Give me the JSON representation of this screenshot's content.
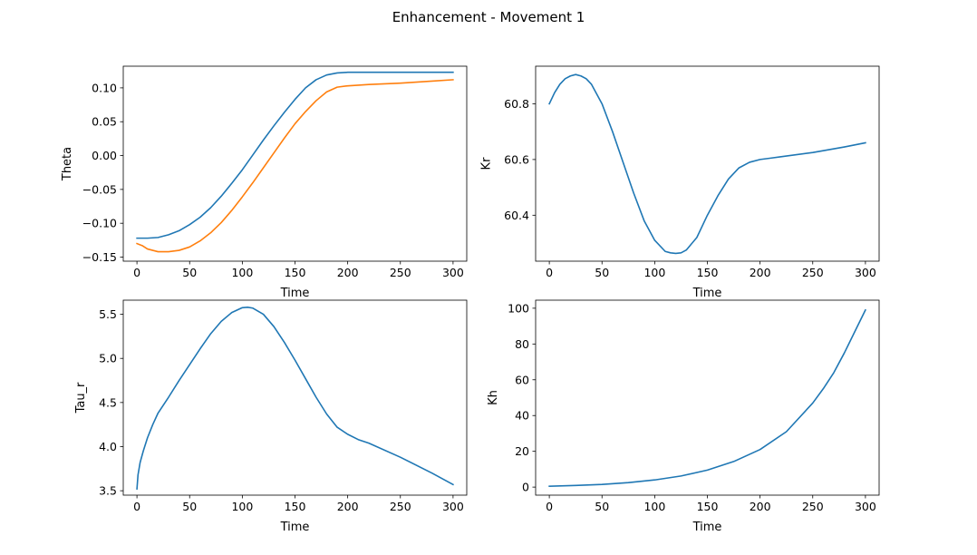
{
  "figure": {
    "title": "Enhancement - Movement 1"
  },
  "chart_data": [
    {
      "type": "line",
      "xlabel": "Time",
      "ylabel": "Theta",
      "xlim": [
        -13,
        313
      ],
      "ylim": [
        -0.156,
        0.132
      ],
      "xticks": [
        0,
        50,
        100,
        150,
        200,
        250,
        300
      ],
      "yticks": [
        -0.15,
        -0.1,
        -0.05,
        0.0,
        0.05,
        0.1
      ],
      "ytick_labels": [
        "−0.15",
        "−0.10",
        "−0.05",
        "0.00",
        "0.05",
        "0.10"
      ],
      "grid": false,
      "series": [
        {
          "color": "#1f77b4",
          "x": [
            0,
            10,
            20,
            30,
            40,
            50,
            60,
            70,
            80,
            90,
            100,
            110,
            120,
            130,
            140,
            150,
            160,
            170,
            180,
            190,
            200,
            220,
            250,
            280,
            300
          ],
          "y": [
            -0.122,
            -0.122,
            -0.121,
            -0.117,
            -0.111,
            -0.102,
            -0.091,
            -0.077,
            -0.06,
            -0.041,
            -0.021,
            0.001,
            0.023,
            0.044,
            0.064,
            0.083,
            0.1,
            0.112,
            0.119,
            0.122,
            0.123,
            0.123,
            0.123,
            0.123,
            0.123
          ]
        },
        {
          "color": "#ff7f0e",
          "x": [
            0,
            5,
            10,
            20,
            30,
            40,
            50,
            60,
            70,
            80,
            90,
            100,
            110,
            120,
            130,
            140,
            150,
            160,
            170,
            180,
            190,
            200,
            220,
            250,
            280,
            300
          ],
          "y": [
            -0.13,
            -0.133,
            -0.138,
            -0.142,
            -0.142,
            -0.14,
            -0.135,
            -0.126,
            -0.114,
            -0.099,
            -0.081,
            -0.061,
            -0.04,
            -0.018,
            0.004,
            0.026,
            0.047,
            0.065,
            0.081,
            0.094,
            0.101,
            0.103,
            0.105,
            0.107,
            0.11,
            0.112
          ]
        }
      ]
    },
    {
      "type": "line",
      "xlabel": "Time",
      "ylabel": "Kr",
      "xlim": [
        -13,
        313
      ],
      "ylim": [
        60.235,
        60.935
      ],
      "xticks": [
        0,
        50,
        100,
        150,
        200,
        250,
        300
      ],
      "yticks": [
        60.4,
        60.6,
        60.8
      ],
      "ytick_labels": [
        "60.4",
        "60.6",
        "60.8"
      ],
      "grid": false,
      "series": [
        {
          "color": "#1f77b4",
          "x": [
            0,
            5,
            10,
            15,
            20,
            25,
            30,
            35,
            40,
            50,
            60,
            70,
            80,
            90,
            100,
            110,
            115,
            120,
            125,
            130,
            140,
            150,
            160,
            170,
            180,
            190,
            200,
            210,
            220,
            250,
            280,
            300
          ],
          "y": [
            60.8,
            60.84,
            60.87,
            60.89,
            60.9,
            60.905,
            60.9,
            60.89,
            60.87,
            60.8,
            60.7,
            60.59,
            60.48,
            60.38,
            60.31,
            60.27,
            60.265,
            60.263,
            60.265,
            60.275,
            60.32,
            60.4,
            60.47,
            60.53,
            60.57,
            60.59,
            60.6,
            60.605,
            60.61,
            60.625,
            60.645,
            60.66
          ]
        }
      ]
    },
    {
      "type": "line",
      "xlabel": "Time",
      "ylabel": "Tau_r",
      "xlim": [
        -13,
        313
      ],
      "ylim": [
        3.45,
        5.66
      ],
      "xticks": [
        0,
        50,
        100,
        150,
        200,
        250,
        300
      ],
      "yticks": [
        3.5,
        4.0,
        4.5,
        5.0,
        5.5
      ],
      "ytick_labels": [
        "3.5",
        "4.0",
        "4.5",
        "5.0",
        "5.5"
      ],
      "grid": false,
      "series": [
        {
          "color": "#1f77b4",
          "x": [
            0,
            1,
            3,
            6,
            10,
            15,
            20,
            30,
            40,
            50,
            60,
            70,
            80,
            90,
            100,
            105,
            110,
            120,
            130,
            140,
            150,
            160,
            170,
            180,
            190,
            200,
            210,
            220,
            250,
            280,
            300
          ],
          "y": [
            3.52,
            3.68,
            3.82,
            3.95,
            4.1,
            4.25,
            4.38,
            4.56,
            4.75,
            4.93,
            5.11,
            5.28,
            5.42,
            5.52,
            5.575,
            5.58,
            5.57,
            5.5,
            5.36,
            5.18,
            4.98,
            4.77,
            4.56,
            4.37,
            4.22,
            4.14,
            4.08,
            4.04,
            3.88,
            3.7,
            3.57
          ]
        }
      ]
    },
    {
      "type": "line",
      "xlabel": "Time",
      "ylabel": "Kh",
      "xlim": [
        -13,
        313
      ],
      "ylim": [
        -4.5,
        104.5
      ],
      "xticks": [
        0,
        50,
        100,
        150,
        200,
        250,
        300
      ],
      "yticks": [
        0,
        20,
        40,
        60,
        80,
        100
      ],
      "ytick_labels": [
        "0",
        "20",
        "40",
        "60",
        "80",
        "100"
      ],
      "grid": false,
      "series": [
        {
          "color": "#1f77b4",
          "x": [
            0,
            25,
            50,
            75,
            100,
            125,
            150,
            175,
            200,
            225,
            250,
            260,
            270,
            280,
            290,
            300
          ],
          "y": [
            0.5,
            0.9,
            1.5,
            2.5,
            4.0,
            6.2,
            9.5,
            14.3,
            21.0,
            31.0,
            47.0,
            55.0,
            64.0,
            75.0,
            87.0,
            99.0
          ]
        }
      ]
    }
  ]
}
